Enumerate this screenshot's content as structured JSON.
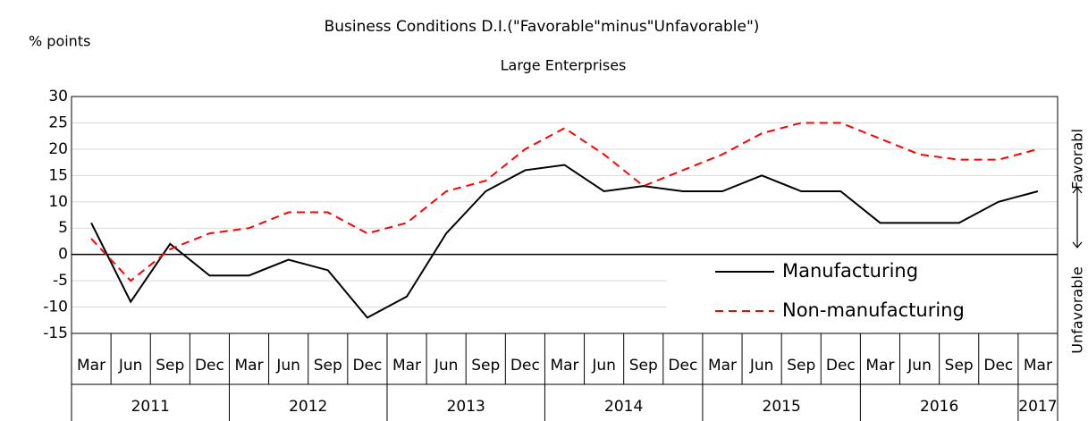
{
  "chart_data": {
    "type": "line",
    "title": "Business Conditions D.I.(\"Favorable\"minus\"Unfavorable\")",
    "subtitle": "Large Enterprises",
    "y_label": "% points",
    "right_label_top": "Favorabl",
    "right_label_bottom": "Unfavorable",
    "categories": [
      "Mar",
      "Jun",
      "Sep",
      "Dec",
      "Mar",
      "Jun",
      "Sep",
      "Dec",
      "Mar",
      "Jun",
      "Sep",
      "Dec",
      "Mar",
      "Jun",
      "Sep",
      "Dec",
      "Mar",
      "Jun",
      "Sep",
      "Dec",
      "Mar",
      "Jun",
      "Sep",
      "Dec",
      "Mar"
    ],
    "years": [
      "2011",
      "2012",
      "2013",
      "2014",
      "2015",
      "2016",
      "2017"
    ],
    "series": [
      {
        "name": "Manufacturing",
        "color": "#000000",
        "dash": false,
        "values": [
          6,
          -9,
          2,
          -4,
          -4,
          -1,
          -3,
          -12,
          -8,
          4,
          12,
          16,
          17,
          12,
          13,
          12,
          12,
          15,
          12,
          12,
          6,
          6,
          6,
          10,
          12
        ]
      },
      {
        "name": "Non-manufacturing",
        "color": "#ff0000",
        "dash": true,
        "values": [
          3,
          -5,
          1,
          4,
          5,
          8,
          8,
          4,
          6,
          12,
          14,
          20,
          24,
          19,
          13,
          16,
          19,
          23,
          25,
          25,
          22,
          19,
          18,
          18,
          20
        ]
      }
    ],
    "ylim": [
      -15,
      30
    ],
    "yticks": [
      -15,
      -10,
      -5,
      0,
      5,
      10,
      15,
      20,
      25,
      30
    ],
    "grid": true
  }
}
